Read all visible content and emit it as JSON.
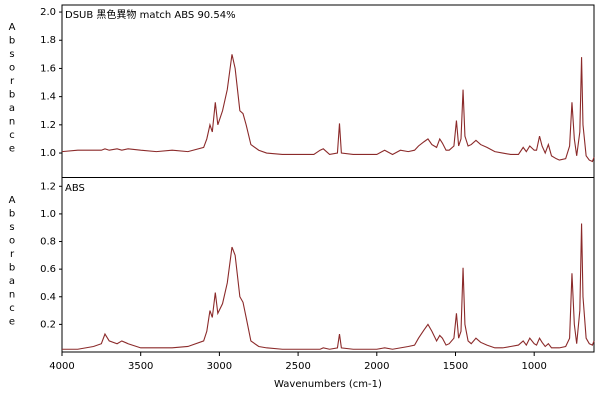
{
  "chart_data": [
    {
      "type": "line",
      "title": "DSUB 黑色異物 match ABS 90.54%",
      "y_label": "Absorbance",
      "color": "#8b2a2a",
      "xlim": [
        4000,
        620
      ],
      "ylim": [
        0.83,
        2.05
      ],
      "yticks": [
        {
          "value": 1,
          "label": "1.0"
        },
        1.2,
        1.4,
        1.6,
        1.8,
        {
          "value": 2,
          "label": "2.0"
        }
      ],
      "x": [
        4000,
        3900,
        3800,
        3750,
        3727,
        3700,
        3650,
        3620,
        3580,
        3500,
        3400,
        3300,
        3200,
        3100,
        3080,
        3060,
        3045,
        3026,
        3010,
        2980,
        2950,
        2920,
        2900,
        2870,
        2850,
        2830,
        2800,
        2750,
        2700,
        2600,
        2500,
        2400,
        2360,
        2340,
        2300,
        2250,
        2237,
        2225,
        2150,
        2000,
        1950,
        1900,
        1850,
        1800,
        1760,
        1735,
        1700,
        1675,
        1650,
        1620,
        1600,
        1583,
        1560,
        1540,
        1510,
        1494,
        1480,
        1465,
        1452,
        1440,
        1420,
        1400,
        1370,
        1340,
        1300,
        1250,
        1200,
        1150,
        1100,
        1070,
        1050,
        1028,
        1000,
        985,
        966,
        950,
        930,
        910,
        890,
        860,
        840,
        800,
        775,
        760,
        745,
        730,
        710,
        699,
        690,
        670,
        650,
        630,
        620
      ],
      "values": [
        1.01,
        1.02,
        1.02,
        1.02,
        1.03,
        1.02,
        1.03,
        1.02,
        1.03,
        1.02,
        1.01,
        1.02,
        1.01,
        1.04,
        1.1,
        1.2,
        1.15,
        1.36,
        1.2,
        1.3,
        1.45,
        1.7,
        1.6,
        1.3,
        1.28,
        1.2,
        1.06,
        1.02,
        1.0,
        0.99,
        0.99,
        0.99,
        1.02,
        1.03,
        0.99,
        1.0,
        1.21,
        1.0,
        0.99,
        0.99,
        1.02,
        0.99,
        1.02,
        1.01,
        1.02,
        1.05,
        1.08,
        1.1,
        1.06,
        1.04,
        1.1,
        1.07,
        1.02,
        1.02,
        1.05,
        1.23,
        1.05,
        1.1,
        1.45,
        1.12,
        1.05,
        1.06,
        1.09,
        1.06,
        1.04,
        1.01,
        1.0,
        0.99,
        0.99,
        1.04,
        1.01,
        1.05,
        1.02,
        1.02,
        1.12,
        1.05,
        1.0,
        1.06,
        0.98,
        0.96,
        0.95,
        0.96,
        1.05,
        1.36,
        1.1,
        0.98,
        1.15,
        1.68,
        1.2,
        0.98,
        0.95,
        0.94,
        0.97
      ]
    },
    {
      "type": "line",
      "title": "ABS",
      "y_label": "Absorbance",
      "x_label": "Wavenumbers (cm-1)",
      "color": "#8b2a2a",
      "xlim": [
        4000,
        620
      ],
      "ylim": [
        0,
        1.26
      ],
      "xticks": [
        4000,
        3500,
        3000,
        2500,
        2000,
        1500,
        1000
      ],
      "yticks": [
        0.2,
        0.4,
        0.6,
        0.8,
        {
          "value": 1,
          "label": "1.0"
        },
        1.2
      ],
      "x": [
        4000,
        3900,
        3800,
        3750,
        3727,
        3700,
        3650,
        3620,
        3580,
        3500,
        3400,
        3300,
        3200,
        3100,
        3080,
        3060,
        3045,
        3026,
        3010,
        2980,
        2950,
        2920,
        2900,
        2870,
        2850,
        2830,
        2800,
        2750,
        2700,
        2600,
        2500,
        2400,
        2360,
        2340,
        2300,
        2250,
        2237,
        2225,
        2150,
        2000,
        1950,
        1900,
        1850,
        1800,
        1760,
        1735,
        1700,
        1675,
        1650,
        1620,
        1600,
        1583,
        1560,
        1540,
        1510,
        1494,
        1480,
        1465,
        1452,
        1440,
        1420,
        1400,
        1370,
        1340,
        1300,
        1250,
        1200,
        1150,
        1100,
        1070,
        1050,
        1028,
        1000,
        985,
        966,
        950,
        930,
        910,
        890,
        860,
        840,
        800,
        775,
        760,
        745,
        730,
        710,
        699,
        690,
        670,
        650,
        630,
        620
      ],
      "values": [
        0.02,
        0.02,
        0.04,
        0.06,
        0.13,
        0.08,
        0.06,
        0.08,
        0.06,
        0.03,
        0.03,
        0.03,
        0.04,
        0.08,
        0.15,
        0.3,
        0.25,
        0.43,
        0.28,
        0.35,
        0.5,
        0.76,
        0.7,
        0.4,
        0.36,
        0.25,
        0.08,
        0.04,
        0.03,
        0.02,
        0.02,
        0.02,
        0.02,
        0.03,
        0.02,
        0.03,
        0.13,
        0.03,
        0.02,
        0.02,
        0.03,
        0.02,
        0.03,
        0.04,
        0.05,
        0.1,
        0.16,
        0.2,
        0.15,
        0.08,
        0.12,
        0.1,
        0.05,
        0.06,
        0.1,
        0.28,
        0.1,
        0.15,
        0.61,
        0.2,
        0.08,
        0.06,
        0.1,
        0.07,
        0.05,
        0.03,
        0.03,
        0.04,
        0.05,
        0.08,
        0.05,
        0.1,
        0.06,
        0.05,
        0.1,
        0.07,
        0.04,
        0.06,
        0.03,
        0.03,
        0.03,
        0.04,
        0.1,
        0.57,
        0.2,
        0.06,
        0.3,
        0.93,
        0.4,
        0.1,
        0.06,
        0.05,
        0.08
      ]
    }
  ]
}
